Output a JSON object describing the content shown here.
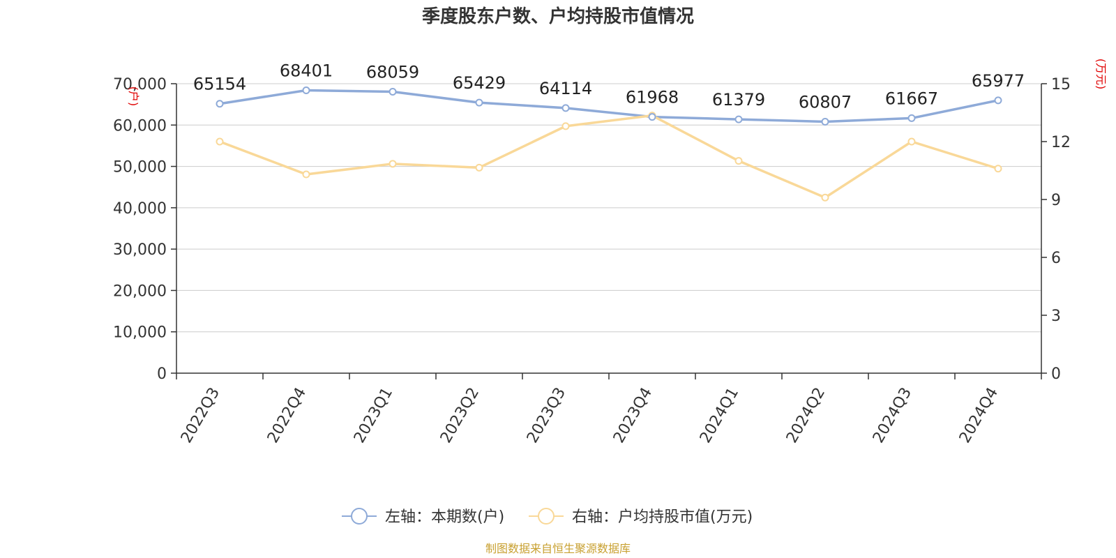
{
  "chart_data": {
    "type": "line",
    "title": "季度股东户数、户均持股市值情况",
    "categories": [
      "2022Q3",
      "2022Q4",
      "2023Q1",
      "2023Q2",
      "2023Q3",
      "2023Q4",
      "2024Q1",
      "2024Q2",
      "2024Q3",
      "2024Q4"
    ],
    "left_axis": {
      "unit": "(户)",
      "ylim": [
        0,
        70000
      ],
      "ticks": [
        "0",
        "10,000",
        "20,000",
        "30,000",
        "40,000",
        "50,000",
        "60,000",
        "70,000"
      ]
    },
    "right_axis": {
      "unit": "(万元)",
      "ylim": [
        0,
        15
      ],
      "ticks": [
        "0",
        "3",
        "6",
        "9",
        "12",
        "15"
      ]
    },
    "series": [
      {
        "name": "左轴：本期数(户)",
        "axis": "left",
        "color": "#8eaad8",
        "values": [
          65154,
          68401,
          68059,
          65429,
          64114,
          61968,
          61379,
          60807,
          61667,
          65977
        ]
      },
      {
        "name": "右轴：户均持股市值(万元)",
        "axis": "right",
        "color": "#f9d898",
        "values": [
          12.0,
          10.3,
          10.85,
          10.65,
          12.8,
          13.35,
          11.0,
          9.1,
          12.0,
          10.6
        ]
      }
    ],
    "grid": true,
    "legend": "bottom",
    "source": "制图数据来自恒生聚源数据库"
  }
}
